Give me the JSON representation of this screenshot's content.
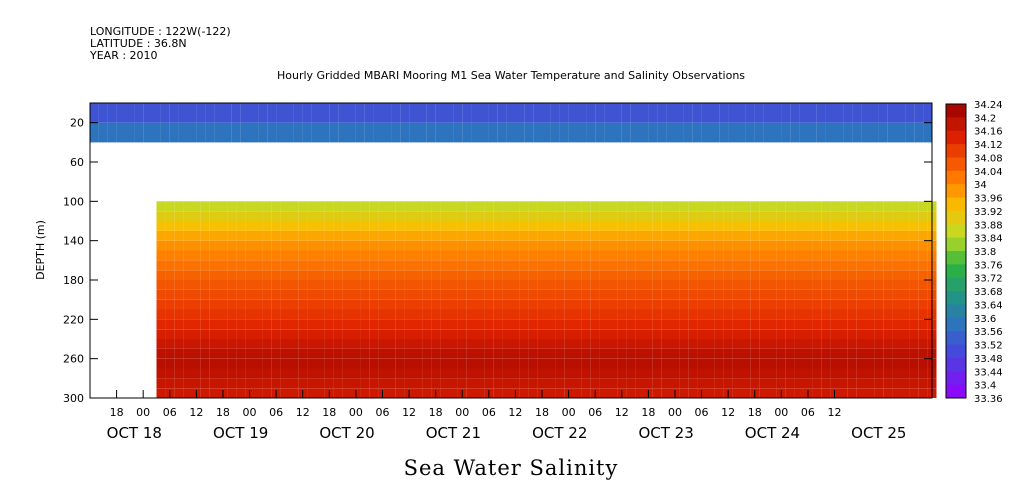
{
  "header": {
    "longitude": "LONGITUDE : 122W(-122)",
    "latitude": "LATITUDE : 36.8N",
    "year": "YEAR : 2010"
  },
  "chart_data": {
    "type": "heatmap",
    "title": "Hourly Gridded MBARI Mooring M1 Sea Water Temperature and Salinity Observations",
    "xlabel": "Sea Water Salinity",
    "ylabel": "DEPTH (m)",
    "x_hour_ticks": [
      "18",
      "00",
      "06",
      "12",
      "18",
      "00",
      "06",
      "12",
      "18",
      "00",
      "06",
      "12",
      "18",
      "00",
      "06",
      "12",
      "18",
      "00",
      "06",
      "12",
      "18",
      "00",
      "06",
      "12",
      "18",
      "00",
      "06",
      "12"
    ],
    "x_day_labels": [
      "OCT 18",
      "OCT 19",
      "OCT 20",
      "OCT 21",
      "OCT 22",
      "OCT 23",
      "OCT 24",
      "OCT 25"
    ],
    "x_range_hours_from_oct18_00": [
      6,
      90,
      174,
      258,
      342,
      426,
      510,
      594
    ],
    "y_ticks": [
      "20",
      "60",
      "100",
      "140",
      "180",
      "220",
      "260",
      "300"
    ],
    "ylim": [
      300,
      0
    ],
    "colorbar_levels": [
      "34.24",
      "34.2",
      "34.16",
      "34.12",
      "34.08",
      "34.04",
      "34",
      "33.96",
      "33.92",
      "33.88",
      "33.84",
      "33.8",
      "33.76",
      "33.72",
      "33.68",
      "33.64",
      "33.6",
      "33.56",
      "33.52",
      "33.48",
      "33.44",
      "33.4",
      "33.36"
    ],
    "colorbar_range": [
      33.36,
      34.24
    ],
    "depth_profile": {
      "depths_m": [
        10,
        20,
        40,
        100,
        140,
        180,
        220,
        260,
        300
      ],
      "salinity": [
        33.52,
        33.56,
        33.6,
        33.84,
        33.98,
        34.06,
        34.12,
        34.2,
        34.16
      ]
    },
    "colors": {
      "high": "#b40000",
      "mid": "#ff8c00",
      "low_mid": "#32b432",
      "low": "#9600ff"
    }
  }
}
